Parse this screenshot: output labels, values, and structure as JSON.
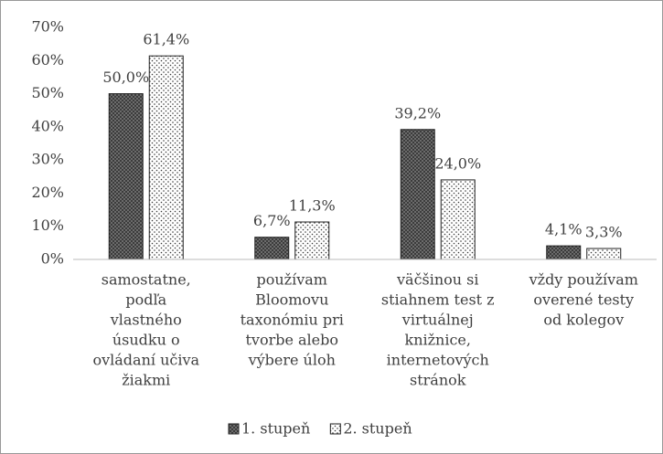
{
  "chart_data": {
    "type": "bar",
    "categories": [
      [
        "samostatne,",
        "podľa",
        "vlastného",
        "úsudku o",
        "ovládaní učiva",
        "žiakmi"
      ],
      [
        "používam",
        "Bloomovu",
        "taxonómiu pri",
        "tvorbe alebo",
        "výbere úloh"
      ],
      [
        "väčšinou si",
        "stiahnem test z",
        "virtuálnej",
        "knižnice,",
        "internetových",
        "stránok"
      ],
      [
        "vždy používam",
        "overené testy",
        "od kolegov"
      ]
    ],
    "series": [
      {
        "name": "1. stupeň",
        "color": "#3a3a3a",
        "pattern": "crosshatch",
        "values": [
          50.0,
          6.7,
          39.2,
          4.1
        ],
        "value_labels": [
          "50,0%",
          "6,7%",
          "39,2%",
          "4,1%"
        ]
      },
      {
        "name": "2. stupeň",
        "color": "#3a3a3a",
        "pattern": "dots",
        "values": [
          61.4,
          11.3,
          24.0,
          3.3
        ],
        "value_labels": [
          "61,4%",
          "11,3%",
          "24,0%",
          "3,3%"
        ]
      }
    ],
    "ylim": [
      0,
      70
    ],
    "yticks": [
      {
        "value": 0,
        "label": "0%"
      },
      {
        "value": 10,
        "label": "10%"
      },
      {
        "value": 20,
        "label": "20%"
      },
      {
        "value": 30,
        "label": "30%"
      },
      {
        "value": 40,
        "label": "40%"
      },
      {
        "value": 50,
        "label": "50%"
      },
      {
        "value": 60,
        "label": "60%"
      },
      {
        "value": 70,
        "label": "70%"
      }
    ],
    "grid": false,
    "legend": "bottom"
  }
}
